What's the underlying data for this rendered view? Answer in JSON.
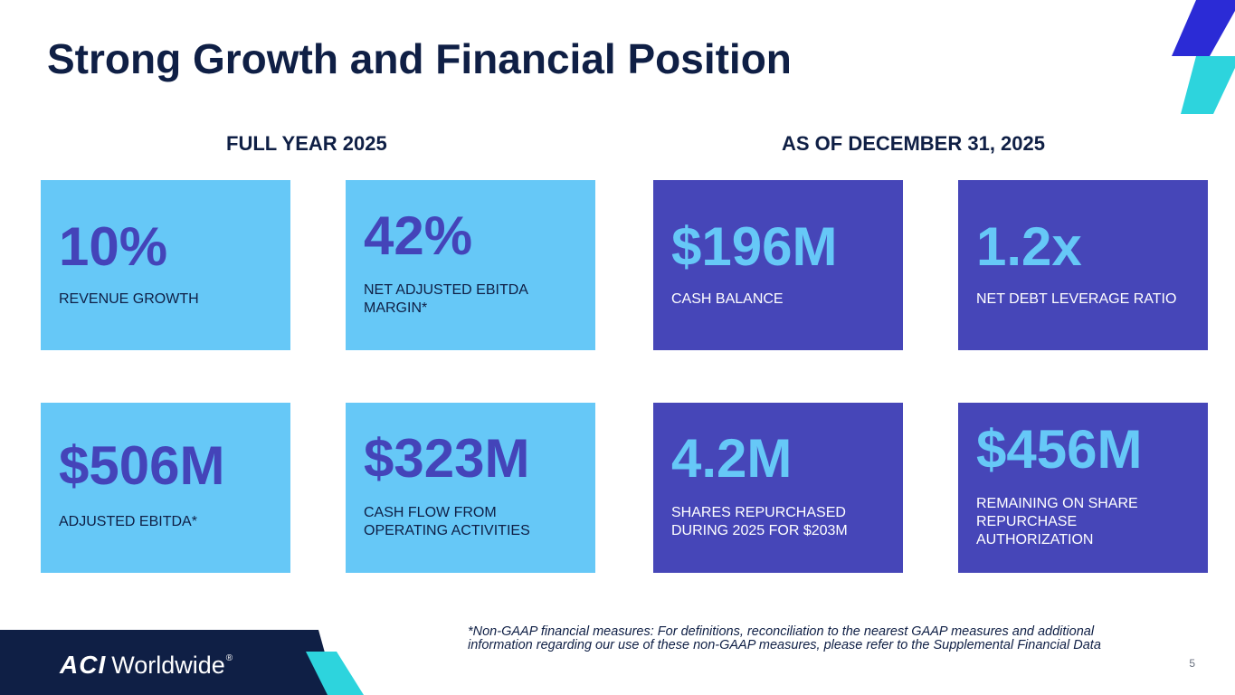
{
  "slide": {
    "title": "Strong Growth and Financial Position",
    "page_number": "5"
  },
  "sections": {
    "full_year": "FULL YEAR 2025",
    "as_of": "AS OF DECEMBER 31, 2025"
  },
  "cards": [
    {
      "value": "10%",
      "label": "REVENUE GROWTH"
    },
    {
      "value": "42%",
      "label": "NET ADJUSTED EBITDA MARGIN*"
    },
    {
      "value": "$196M",
      "label": "CASH BALANCE"
    },
    {
      "value": "1.2x",
      "label": "NET DEBT LEVERAGE RATIO"
    },
    {
      "value": "$506M",
      "label": "ADJUSTED EBITDA*"
    },
    {
      "value": "$323M",
      "label": "CASH FLOW FROM OPERATING ACTIVITIES"
    },
    {
      "value": "4.2M",
      "label": "SHARES REPURCHASED DURING 2025 FOR $203M"
    },
    {
      "value": "$456M",
      "label": "REMAINING ON SHARE REPURCHASE AUTHORIZATION"
    }
  ],
  "footnote": "*Non-GAAP financial measures: For definitions, reconciliation to the nearest GAAP measures and additional information regarding our use of these non-GAAP measures, please refer to the Supplemental Financial Data",
  "logo": {
    "mark": "ACI",
    "wordmark": "Worldwide",
    "registered": "®"
  },
  "colors": {
    "navy": "#0f1f45",
    "light_blue": "#66c8f7",
    "purple": "#4646b8",
    "teal": "#2dd4dd",
    "royal_blue": "#2b2bd6"
  }
}
